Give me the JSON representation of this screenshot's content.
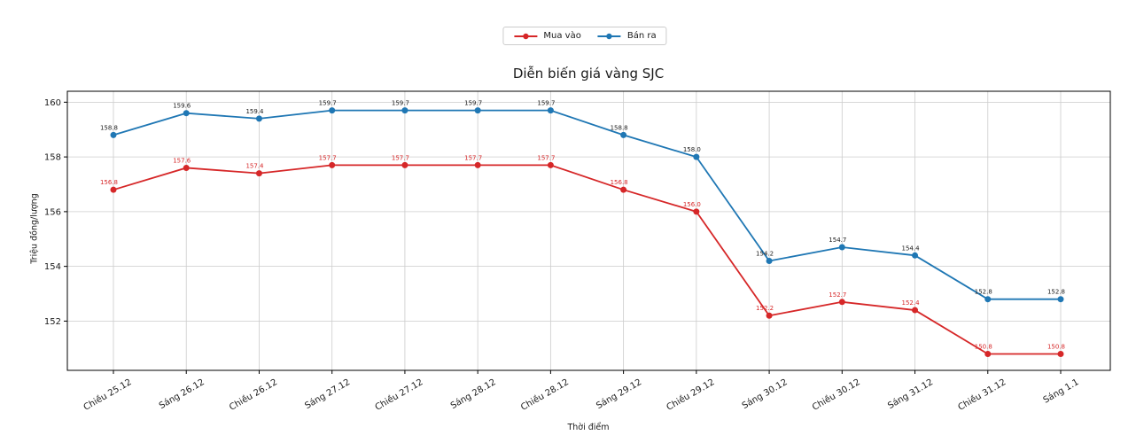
{
  "figure": {
    "background": "#ffffff"
  },
  "legend": {
    "position": "top-center",
    "items": [
      {
        "label": "Mua vào",
        "color": "#d62728"
      },
      {
        "label": "Bán ra",
        "color": "#1f77b4"
      }
    ]
  },
  "chart_data": {
    "type": "line",
    "title": "Diễn biến giá vàng SJC",
    "xlabel": "Thời điểm",
    "ylabel": "Triệu đồng/lượng",
    "categories": [
      "Chiều 25.12",
      "Sáng 26.12",
      "Chiều 26.12",
      "Sáng 27.12",
      "Chiều 27.12",
      "Sáng 28.12",
      "Chiều 28.12",
      "Sáng 29.12",
      "Chiều 29.12",
      "Sáng 30.12",
      "Chiều 30.12",
      "Sáng 31.12",
      "Chiều 31.12",
      "Sáng 1.1"
    ],
    "series": [
      {
        "name": "Mua vào",
        "color": "#d62728",
        "label_color": "#d62728",
        "values": [
          156.8,
          157.6,
          157.4,
          157.7,
          157.7,
          157.7,
          157.7,
          156.8,
          156.0,
          152.2,
          152.7,
          152.4,
          150.8,
          150.8
        ]
      },
      {
        "name": "Bán ra",
        "color": "#1f77b4",
        "label_color": "#1a1a1a",
        "values": [
          158.8,
          159.6,
          159.4,
          159.7,
          159.7,
          159.7,
          159.7,
          158.8,
          158.0,
          154.2,
          154.7,
          154.4,
          152.8,
          152.8
        ]
      }
    ],
    "ylim": [
      150.2,
      160.4
    ],
    "yticks": [
      152,
      154,
      156,
      158,
      160
    ],
    "grid": true,
    "marker": "circle",
    "data_labels": true,
    "data_label_decimals": 1,
    "legend_position": "top-center",
    "colors": {
      "grid": "#cccccc",
      "spine": "#000000",
      "tick": "#000000",
      "tick_label": "#1a1a1a"
    }
  }
}
